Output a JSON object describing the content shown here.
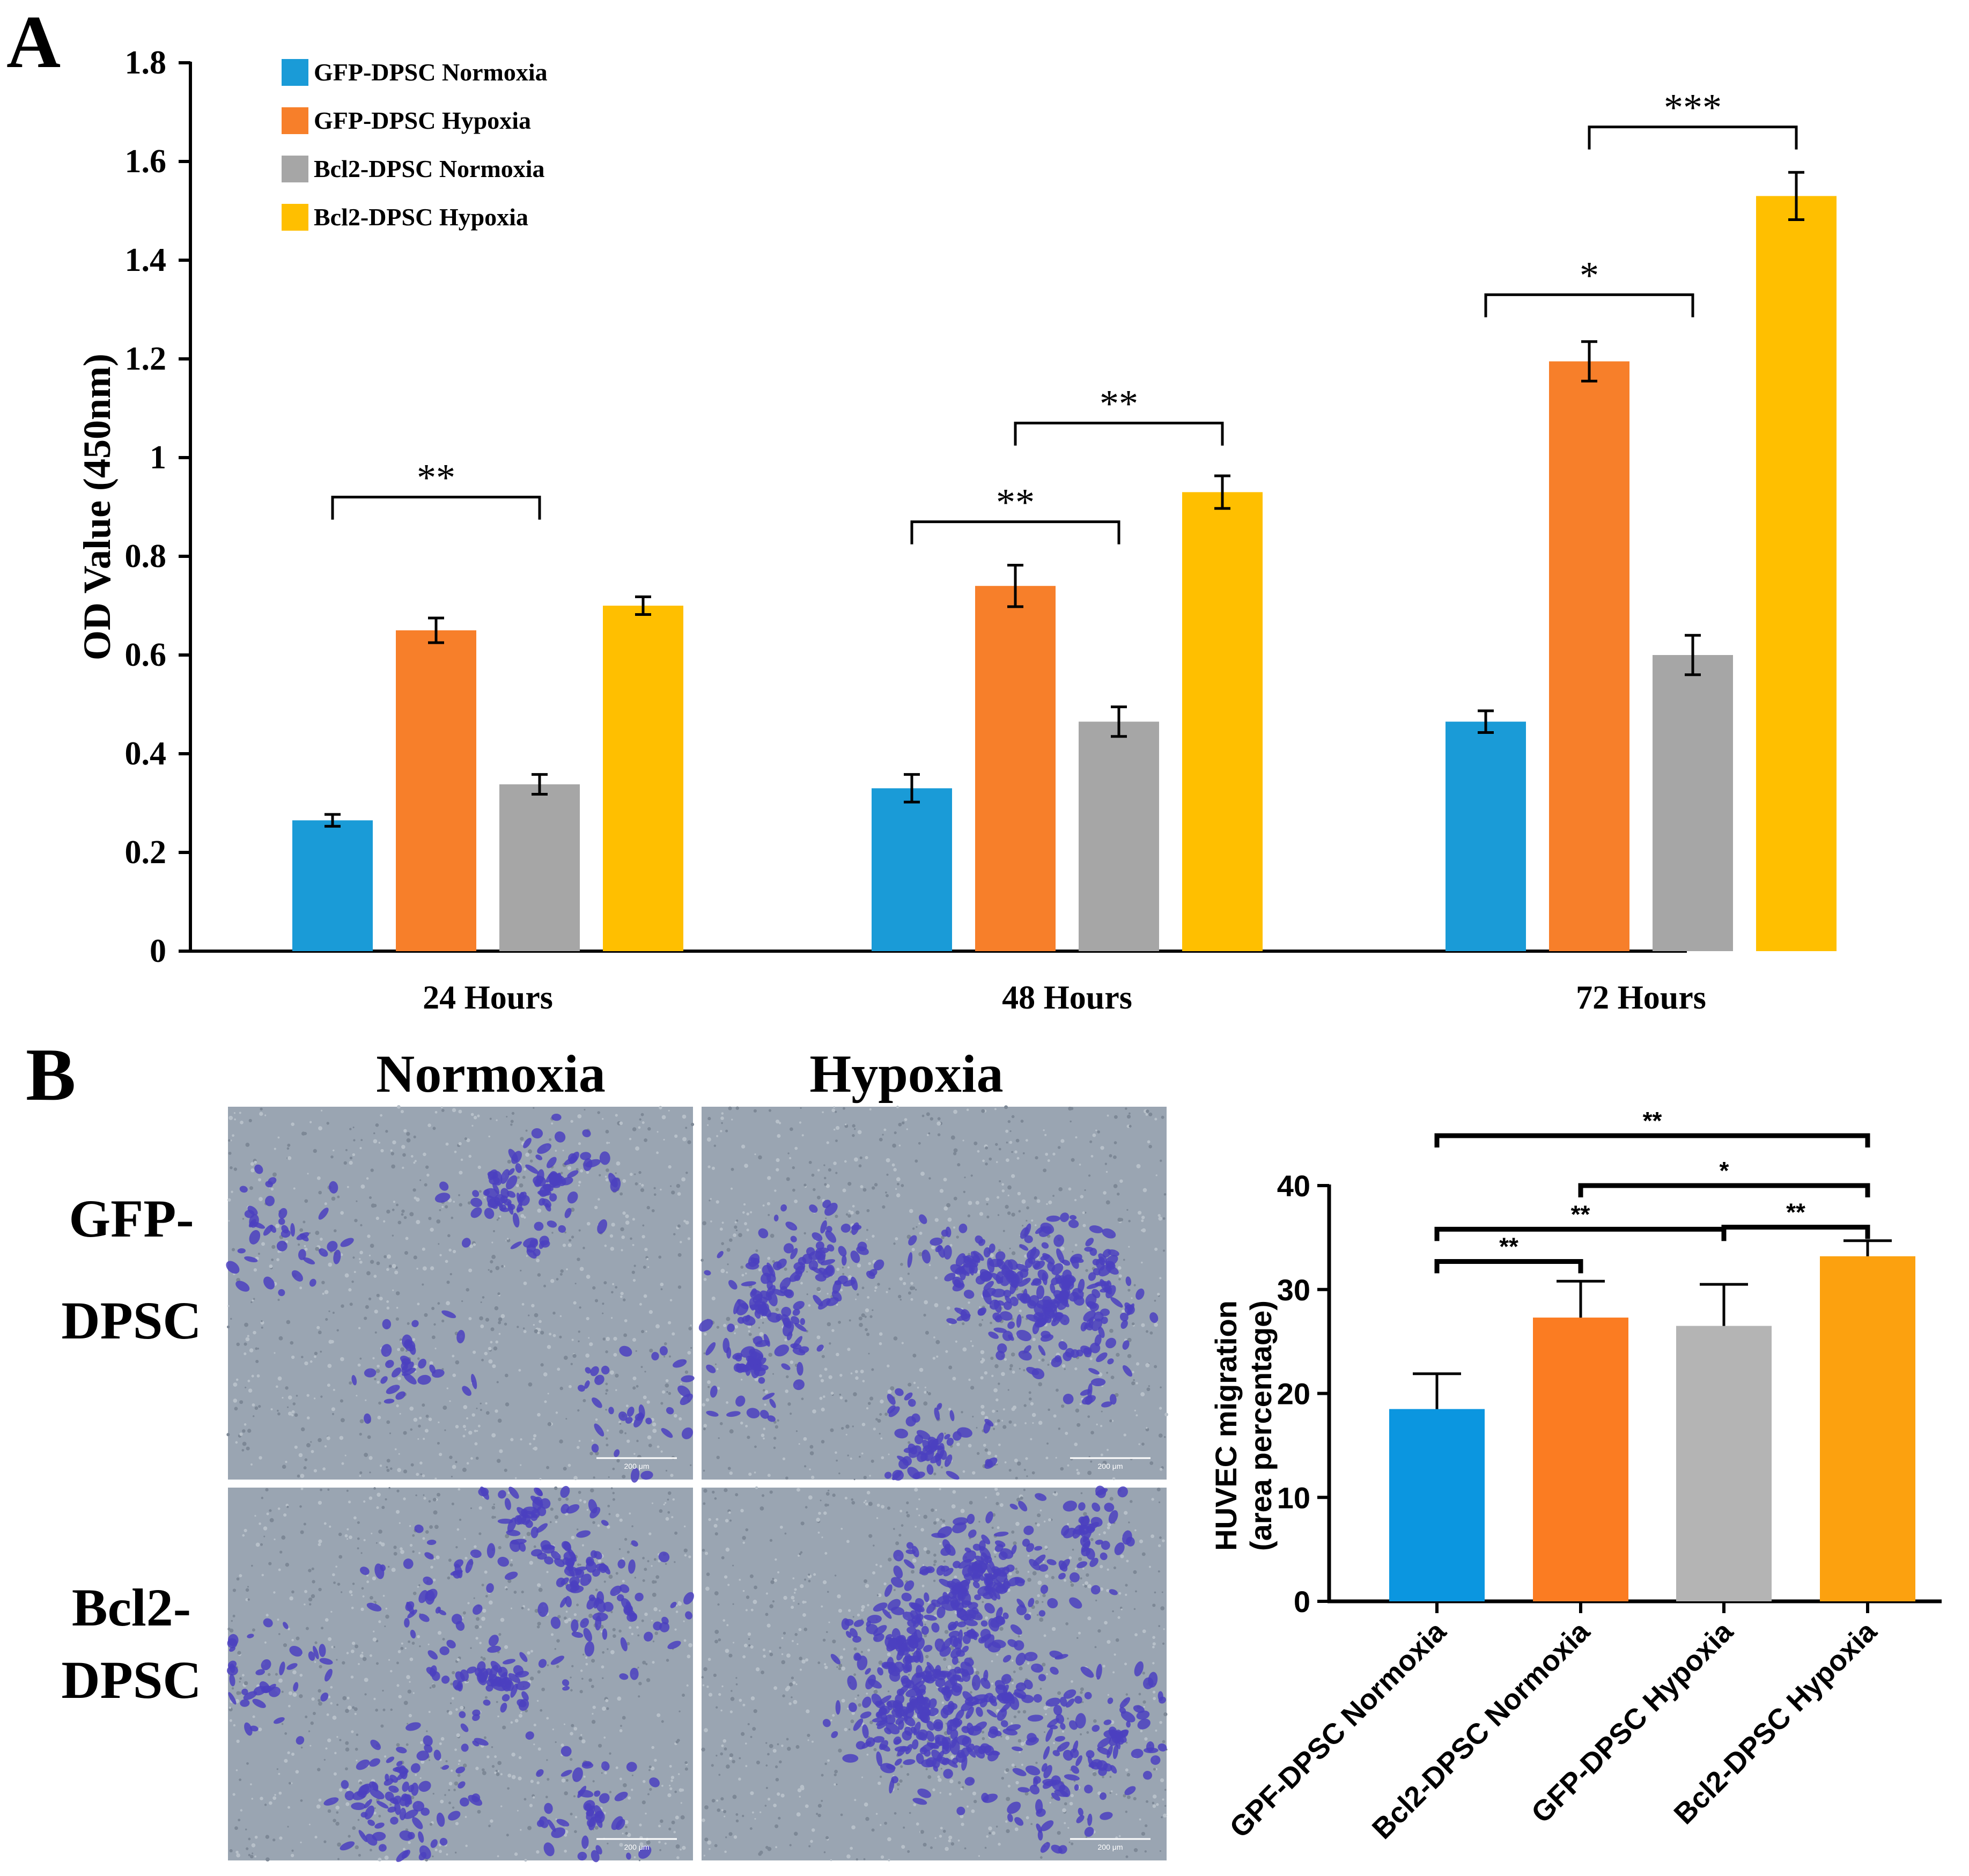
{
  "panels": {
    "a_letter": "A",
    "b_letter": "B"
  },
  "colors": {
    "blue": "#1a9bd7",
    "orange": "#f77f2a",
    "gray": "#a6a6a6",
    "yellow": "#ffbf00",
    "blue_b": "#0b96e0",
    "orange_b": "#fb7c22",
    "gray_b": "#b4b4b4",
    "yellow_b": "#fca10f",
    "micro_bg": "#9aa5b2",
    "micro_cell": "#4b3fc0"
  },
  "micrograph": {
    "col_labels": [
      "Normoxia",
      "Hypoxia"
    ],
    "row_labels": [
      [
        "GFP-",
        "DPSC"
      ],
      [
        "Bcl2-",
        "DPSC"
      ]
    ],
    "scale_label": "200 μm"
  },
  "chart_data": [
    {
      "type": "bar",
      "ylabel": "OD Value (450nm)",
      "xlabel": "",
      "ylim": [
        0,
        1.8
      ],
      "yticks": [
        0,
        0.2,
        0.4,
        0.6,
        0.8,
        1,
        1.2,
        1.4,
        1.6,
        1.8
      ],
      "ytick_labels": [
        "0",
        "0.2",
        "0.4",
        "0.6",
        "0.8",
        "1",
        "1.2",
        "1.4",
        "1.6",
        "1.8"
      ],
      "categories": [
        "24 Hours",
        "48 Hours",
        "72 Hours"
      ],
      "legend_position": "top-left",
      "series": [
        {
          "name": "GFP-DPSC Normoxia",
          "color": "#1a9bd7",
          "values": [
            0.265,
            0.33,
            0.465
          ],
          "errors": [
            0.012,
            0.028,
            0.022
          ]
        },
        {
          "name": "GFP-DPSC Hypoxia",
          "color": "#f77f2a",
          "values": [
            0.65,
            0.74,
            1.195
          ],
          "errors": [
            0.025,
            0.042,
            0.04
          ]
        },
        {
          "name": "Bcl2-DPSC Normoxia",
          "color": "#a6a6a6",
          "values": [
            0.338,
            0.465,
            0.6
          ],
          "errors": [
            0.02,
            0.03,
            0.04
          ]
        },
        {
          "name": "Bcl2-DPSC Hypoxia",
          "color": "#ffbf00",
          "values": [
            0.7,
            0.93,
            1.53
          ],
          "errors": [
            0.018,
            0.033,
            0.048
          ]
        }
      ],
      "significance": [
        {
          "group": 0,
          "from": 0,
          "to": 2,
          "y": 0.92,
          "label": "**"
        },
        {
          "group": 1,
          "from": 0,
          "to": 2,
          "y": 0.87,
          "label": "**"
        },
        {
          "group": 1,
          "from": 1,
          "to": 3,
          "y": 1.07,
          "label": "**"
        },
        {
          "group": 2,
          "from": 0,
          "to": 2,
          "y": 1.33,
          "label": "*"
        },
        {
          "group": 2,
          "from": 1,
          "to": 3,
          "y": 1.67,
          "label": "***"
        }
      ]
    },
    {
      "type": "bar",
      "ylabel": [
        "HUVEC migration",
        "(area percentage)"
      ],
      "xlabel": "",
      "ylim": [
        0,
        40
      ],
      "yticks": [
        0,
        10,
        20,
        30,
        40
      ],
      "ytick_labels": [
        "0",
        "10",
        "20",
        "30",
        "40"
      ],
      "categories": [
        "GPF-DPSC Normoxia",
        "Bcl2-DPSC Normoxia",
        "GFP-DPSC Hypoxia",
        "Bcl2-DPSC Hypoxia"
      ],
      "values": [
        18.5,
        27.3,
        26.5,
        33.2
      ],
      "errors": [
        3.4,
        3.5,
        4.0,
        1.5
      ],
      "bar_colors": [
        "#0b96e0",
        "#fb7c22",
        "#b4b4b4",
        "#fca10f"
      ],
      "significance": [
        {
          "from": 0,
          "to": 3,
          "y": 44.8,
          "label": "**"
        },
        {
          "from": 1,
          "to": 3,
          "y": 40.0,
          "label": "*"
        },
        {
          "from": 2,
          "to": 3,
          "y": 36.0,
          "label": "**"
        },
        {
          "from": 0,
          "to": 2,
          "y": 35.8,
          "label": "**"
        },
        {
          "from": 0,
          "to": 1,
          "y": 32.7,
          "label": "**"
        }
      ]
    }
  ]
}
